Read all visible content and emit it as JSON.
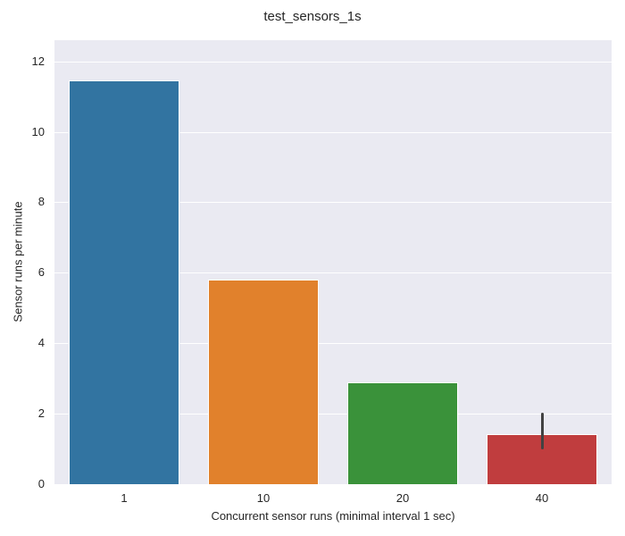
{
  "chart_data": {
    "type": "bar",
    "title": "test_sensors_1s",
    "xlabel": "Concurrent sensor runs (minimal interval 1 sec)",
    "ylabel": "Sensor runs per minute",
    "categories": [
      "1",
      "10",
      "20",
      "40"
    ],
    "values": [
      11.45,
      5.8,
      2.9,
      1.42
    ],
    "error_bars": [
      null,
      null,
      null,
      {
        "low": 1.0,
        "high": 2.03
      }
    ],
    "colors": [
      "#3274a1",
      "#e1812c",
      "#3a923a",
      "#c03d3e"
    ],
    "ylim": [
      0,
      12.6
    ],
    "yticks": [
      "0",
      "2",
      "4",
      "6",
      "8",
      "10",
      "12"
    ],
    "grid": true,
    "legend": null
  }
}
